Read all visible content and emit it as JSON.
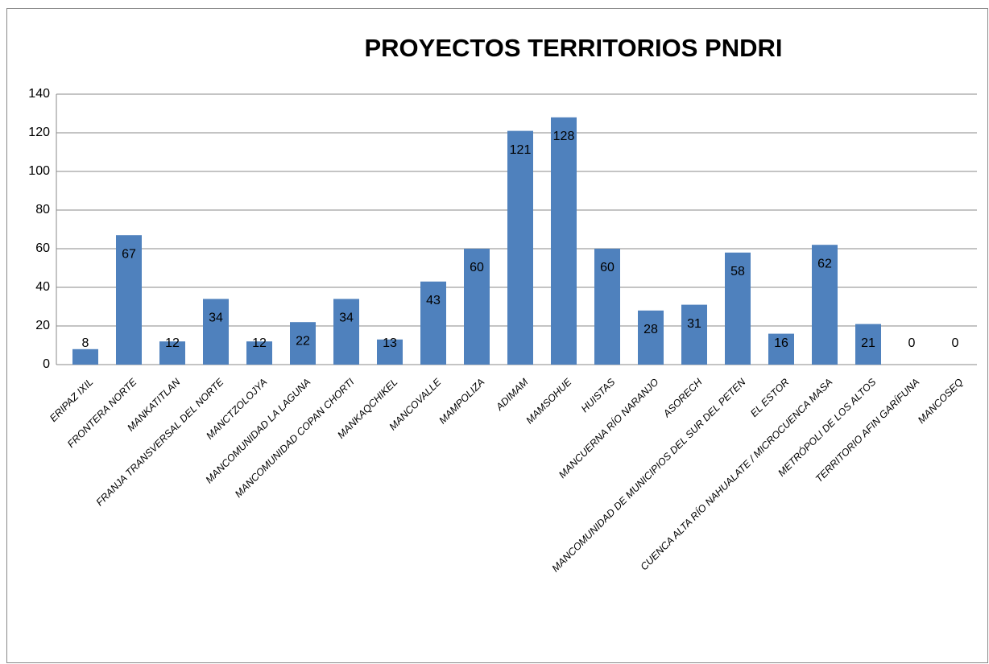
{
  "chart_data": {
    "type": "bar",
    "title": "PROYECTOS  TERRITORIOS  PNDRI",
    "categories": [
      "ERIPAZ IXIL",
      "FRONTERA NORTE",
      "MANKATITLAN",
      "FRANJA TRANSVERSAL DEL NORTE",
      "MANCTZOLOJYA",
      "MANCOMUNIDAD LA LAGUNA",
      "MANCOMUNIDAD COPAN CHORTI",
      "MANKAQCHIKEL",
      "MANCOVALLE",
      "MAMPOLIZA",
      "ADIMAM",
      "MAMSOHUE",
      "HUISTAS",
      "MANCUERNA RÍO NARANJO",
      "ASORECH",
      "MANCOMUNIDAD DE MUNICIPIOS DEL SUR DEL PETEN",
      "EL ESTOR",
      "CUENCA ALTA RÍO NAHUALATE / MICROCUENCA MASA",
      "METRÓPOLI DE LOS ALTOS",
      "TERRITORIO AFIN GARÍFUNA",
      "MANCOSEQ"
    ],
    "values": [
      8,
      67,
      12,
      34,
      12,
      22,
      34,
      13,
      43,
      60,
      121,
      128,
      60,
      28,
      31,
      58,
      16,
      62,
      21,
      0,
      0
    ],
    "color": "#4f81bd",
    "ylim": [
      0,
      140
    ],
    "yticks": [
      0,
      20,
      40,
      60,
      80,
      100,
      120,
      140
    ],
    "grid": true
  }
}
